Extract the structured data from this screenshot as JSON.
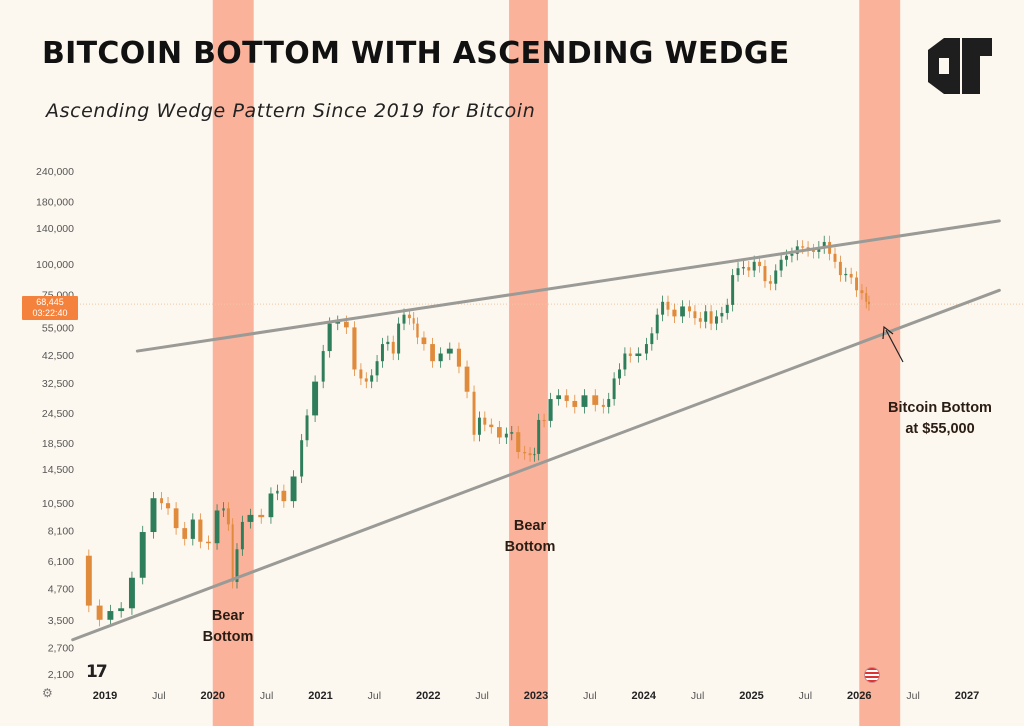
{
  "header": {
    "title": "BITCOIN BOTTOM WITH ASCENDING WEDGE",
    "subtitle": "Ascending Wedge Pattern Since 2019 for Bitcoin",
    "logo_icon": "dlt-logo-icon"
  },
  "price_tag": {
    "price": "68,445",
    "countdown": "03:22:40"
  },
  "annotations": {
    "bear_bottom_1": [
      "Bear",
      "Bottom"
    ],
    "bear_bottom_2": [
      "Bear",
      "Bottom"
    ],
    "bitcoin_bottom": [
      "Bitcoin Bottom",
      "at $55,000"
    ]
  },
  "footer": {
    "tv_logo": "17",
    "settings_icon": "gear-icon",
    "flag_icon": "us-flag-icon"
  },
  "colors": {
    "background": "#fdf8ef",
    "bear_band": "#f9a68c",
    "up_candle": "#2e7d5b",
    "down_candle": "#e08a3c",
    "wedge_line": "#9a9a96",
    "price_tag": "#f5823c"
  },
  "chart_data": {
    "type": "candlestick",
    "title": "BITCOIN BOTTOM WITH ASCENDING WEDGE",
    "subtitle": "Ascending Wedge Pattern Since 2019 for Bitcoin",
    "y_scale": "log",
    "y_ticks": [
      2100,
      2700,
      3500,
      4700,
      6100,
      8100,
      10500,
      14500,
      18500,
      24500,
      32500,
      42500,
      55000,
      75000,
      100000,
      140000,
      180000,
      240000
    ],
    "y_tick_labels": [
      "2,100",
      "2,700",
      "3,500",
      "4,700",
      "6,100",
      "8,100",
      "10,500",
      "14,500",
      "18,500",
      "24,500",
      "32,500",
      "42,500",
      "55,000",
      "75,000",
      "100,000",
      "140,000",
      "180,000",
      "240,000"
    ],
    "x_ticks": [
      2019.0,
      2019.5,
      2020.0,
      2020.5,
      2021.0,
      2021.5,
      2022.0,
      2022.5,
      2023.0,
      2023.5,
      2024.0,
      2024.5,
      2025.0,
      2025.5,
      2026.0,
      2026.5,
      2027.0
    ],
    "x_tick_labels": [
      "2019",
      "Jul",
      "2020",
      "Jul",
      "2021",
      "Jul",
      "2022",
      "Jul",
      "2023",
      "Jul",
      "2024",
      "Jul",
      "2025",
      "Jul",
      "2026",
      "Jul",
      "2027"
    ],
    "current_price": 68445,
    "series": [
      {
        "x": [
          2018.8,
          2018.9,
          2019.0,
          2019.1,
          2019.2,
          2019.3,
          2019.4,
          2019.5,
          2019.55,
          2019.62,
          2019.7,
          2019.78,
          2019.85,
          2019.92,
          2020.0,
          2020.08,
          2020.12,
          2020.17,
          2020.2,
          2020.25,
          2020.3,
          2020.4,
          2020.5,
          2020.58,
          2020.62,
          2020.7,
          2020.8,
          2020.85,
          2020.9,
          2021.0,
          2021.05,
          2021.12,
          2021.2,
          2021.28,
          2021.35,
          2021.4,
          2021.45,
          2021.5,
          2021.55,
          2021.6,
          2021.65,
          2021.7,
          2021.75,
          2021.8,
          2021.85,
          2021.88,
          2021.92,
          2022.0,
          2022.08,
          2022.15,
          2022.25,
          2022.32,
          2022.4,
          2022.45,
          2022.5,
          2022.55,
          2022.62,
          2022.7,
          2022.75,
          2022.8,
          2022.87,
          2022.92,
          2022.97,
          2023.0,
          2023.05,
          2023.1,
          2023.17,
          2023.25,
          2023.32,
          2023.4,
          2023.5,
          2023.6,
          2023.65,
          2023.7,
          2023.75,
          2023.8,
          2023.85,
          2023.9,
          2024.0,
          2024.05,
          2024.1,
          2024.15,
          2024.2,
          2024.25,
          2024.32,
          2024.4,
          2024.45,
          2024.5,
          2024.55,
          2024.6,
          2024.65,
          2024.7,
          2024.75,
          2024.8,
          2024.85,
          2024.9,
          2024.95,
          2025.0,
          2025.05,
          2025.1,
          2025.15,
          2025.2,
          2025.25,
          2025.3,
          2025.35,
          2025.4,
          2025.45,
          2025.5,
          2025.55,
          2025.6,
          2025.65,
          2025.7,
          2025.75,
          2025.8,
          2025.85,
          2025.9,
          2025.95,
          2026.0,
          2026.05,
          2026.08,
          2026.1
        ],
        "close": [
          6400,
          4000,
          3500,
          3800,
          3900,
          5200,
          8000,
          11000,
          10500,
          10000,
          8300,
          7500,
          9000,
          7300,
          7200,
          9800,
          10000,
          8600,
          5000,
          6800,
          8800,
          9400,
          9200,
          11500,
          11800,
          10700,
          13500,
          19000,
          24000,
          33000,
          44000,
          57000,
          58000,
          55000,
          37000,
          34000,
          33000,
          35000,
          40000,
          47000,
          48000,
          43000,
          57000,
          62000,
          60000,
          57000,
          50000,
          47000,
          40000,
          43000,
          45000,
          38000,
          30000,
          20000,
          23500,
          22000,
          21500,
          19500,
          20200,
          20500,
          17000,
          16800,
          16500,
          16700,
          23000,
          22800,
          28000,
          29000,
          27500,
          26000,
          29000,
          26500,
          26000,
          28000,
          34000,
          37000,
          43000,
          42000,
          43000,
          47000,
          52000,
          62000,
          70000,
          65000,
          61000,
          67000,
          64000,
          60000,
          58000,
          64000,
          57000,
          61000,
          63000,
          68000,
          90000,
          96000,
          97000,
          94000,
          102000,
          98000,
          85000,
          83000,
          94000,
          104000,
          108000,
          110000,
          118000,
          117000,
          114000,
          112000,
          117000,
          123000,
          110000,
          102000,
          90000,
          91000,
          88000,
          78000,
          76000,
          70000,
          68445
        ]
      }
    ],
    "bear_periods": [
      [
        2020.0,
        2020.38
      ],
      [
        2022.75,
        2023.11
      ],
      [
        2026.0,
        2026.38
      ]
    ],
    "wedge_upper": [
      [
        2019.3,
        44000
      ],
      [
        2027.3,
        150000
      ]
    ],
    "wedge_lower": [
      [
        2018.7,
        2900
      ],
      [
        2027.3,
        78000
      ]
    ]
  }
}
